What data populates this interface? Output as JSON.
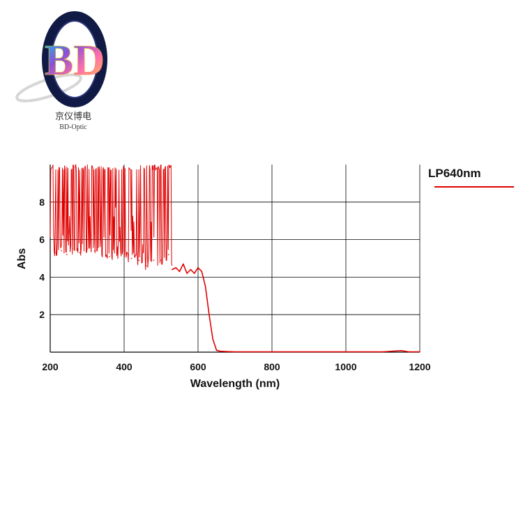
{
  "brand": {
    "monogram": "BD",
    "name_cn": "京仪博电",
    "name_en": "BD-Optic"
  },
  "chart_data": {
    "type": "line",
    "title": "",
    "xlabel": "Wavelength (nm)",
    "ylabel": "Abs",
    "xlim": [
      200,
      1200
    ],
    "ylim": [
      0,
      10
    ],
    "x_ticks": [
      200,
      400,
      600,
      800,
      1000,
      1200
    ],
    "y_ticks": [
      2,
      4,
      6,
      8
    ],
    "grid": true,
    "legend_position": "top-right",
    "series": [
      {
        "name": "LP640nm",
        "color": "#e00000",
        "x": [
          200,
          215,
          230,
          245,
          260,
          280,
          300,
          320,
          340,
          360,
          380,
          400,
          420,
          440,
          460,
          480,
          500,
          520,
          530,
          540,
          550,
          560,
          570,
          580,
          590,
          600,
          610,
          620,
          630,
          640,
          650,
          660,
          680,
          700,
          750,
          800,
          850,
          900,
          950,
          1000,
          1050,
          1100,
          1150,
          1170,
          1200
        ],
        "values": [
          5.5,
          5.3,
          5.4,
          5.2,
          5.5,
          5.3,
          5.5,
          5.4,
          5.3,
          5.1,
          5.3,
          5.2,
          5.0,
          4.9,
          4.6,
          4.9,
          4.9,
          5.2,
          4.4,
          4.5,
          4.3,
          4.7,
          4.2,
          4.4,
          4.2,
          4.5,
          4.3,
          3.5,
          2.0,
          0.7,
          0.1,
          0.05,
          0.03,
          0.02,
          0.02,
          0.02,
          0.02,
          0.02,
          0.02,
          0.02,
          0.02,
          0.02,
          0.08,
          0.02,
          0.02
        ]
      }
    ]
  }
}
